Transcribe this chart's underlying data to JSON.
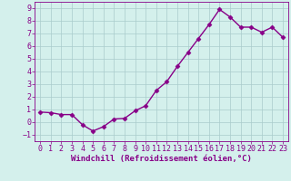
{
  "x": [
    0,
    1,
    2,
    3,
    4,
    5,
    6,
    7,
    8,
    9,
    10,
    11,
    12,
    13,
    14,
    15,
    16,
    17,
    18,
    19,
    20,
    21,
    22,
    23
  ],
  "y": [
    0.8,
    0.75,
    0.6,
    0.6,
    -0.2,
    -0.7,
    -0.35,
    0.25,
    0.3,
    0.9,
    1.3,
    2.5,
    3.2,
    4.4,
    5.5,
    6.6,
    7.7,
    8.9,
    8.3,
    7.5,
    7.5,
    7.1,
    7.5,
    6.7
  ],
  "line_color": "#880088",
  "marker": "D",
  "marker_size": 2.5,
  "bg_color": "#d4f0ec",
  "grid_color": "#aacccc",
  "xlabel": "Windchill (Refroidissement éolien,°C)",
  "ylim": [
    -1.5,
    9.5
  ],
  "xlim": [
    -0.5,
    23.5
  ],
  "yticks": [
    -1,
    0,
    1,
    2,
    3,
    4,
    5,
    6,
    7,
    8,
    9
  ],
  "xticks": [
    0,
    1,
    2,
    3,
    4,
    5,
    6,
    7,
    8,
    9,
    10,
    11,
    12,
    13,
    14,
    15,
    16,
    17,
    18,
    19,
    20,
    21,
    22,
    23
  ],
  "tick_color": "#880088",
  "linewidth": 1.0,
  "tick_fontsize": 6.0,
  "xlabel_fontsize": 6.5
}
